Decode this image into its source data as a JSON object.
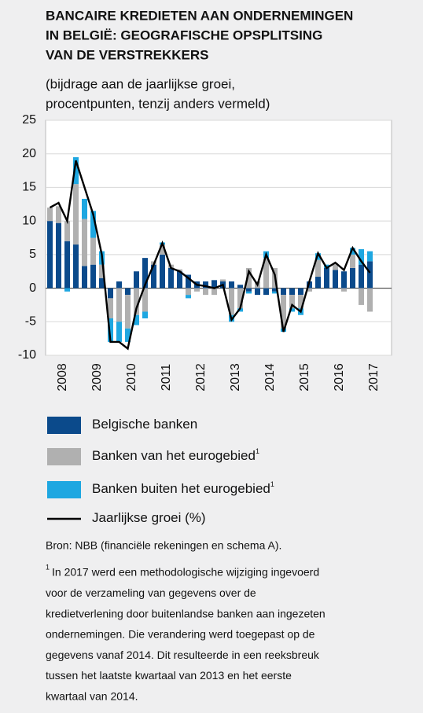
{
  "chart_data": {
    "type": "bar",
    "title": [
      "BANCAIRE KREDIETEN AAN ONDERNEMINGEN",
      "IN BELGIË: GEOGRAFISCHE OPSPLITSING",
      "VAN DE VERSTREKKERS"
    ],
    "subtitle": [
      "(bijdrage aan de jaarlijkse groei,",
      "procentpunten, tenzij anders vermeld)"
    ],
    "x": [
      2008.125,
      2008.375,
      2008.625,
      2008.875,
      2009.125,
      2009.375,
      2009.625,
      2009.875,
      2010.125,
      2010.375,
      2010.625,
      2010.875,
      2011.125,
      2011.375,
      2011.625,
      2011.875,
      2012.125,
      2012.375,
      2012.625,
      2012.875,
      2013.125,
      2013.375,
      2013.625,
      2013.875,
      2014.125,
      2014.375,
      2014.625,
      2014.875,
      2015.125,
      2015.375,
      2015.625,
      2015.875,
      2016.125,
      2016.375,
      2016.625,
      2016.875,
      2017.125,
      2017.375
    ],
    "xlim": [
      2008,
      2018
    ],
    "xticks": [
      {
        "value": 2008.5,
        "label": "2008"
      },
      {
        "value": 2009.5,
        "label": "2009"
      },
      {
        "value": 2010.5,
        "label": "2010"
      },
      {
        "value": 2011.5,
        "label": "2011"
      },
      {
        "value": 2012.5,
        "label": "2012"
      },
      {
        "value": 2013.5,
        "label": "2013"
      },
      {
        "value": 2014.5,
        "label": "2014"
      },
      {
        "value": 2015.5,
        "label": "2015"
      },
      {
        "value": 2016.5,
        "label": "2016"
      },
      {
        "value": 2017.5,
        "label": "2017"
      }
    ],
    "ylim": [
      -10,
      25
    ],
    "yticks": [
      -10,
      -5,
      0,
      5,
      10,
      15,
      20,
      25
    ],
    "grid": true,
    "series": [
      {
        "name": "Belgische banken",
        "type": "bar",
        "color": "#0b4a8b",
        "values": [
          10,
          9.7,
          7,
          6.5,
          3.3,
          3.5,
          1.5,
          -1.5,
          1,
          -1,
          2.5,
          4.5,
          3.5,
          5,
          3,
          2.5,
          2,
          1,
          1,
          1.2,
          1,
          1,
          0.5,
          -0.5,
          -1,
          -1,
          -0.5,
          -1,
          -1,
          -1,
          1,
          1.7,
          3,
          2.7,
          2.5,
          3,
          3.5,
          4
        ]
      },
      {
        "name": "Banken van het eurogebied",
        "note": "1",
        "type": "bar",
        "color": "#b0b0b0",
        "values": [
          2,
          2.5,
          3,
          9,
          7,
          4,
          2,
          -3,
          -5,
          -5,
          -4,
          -3.5,
          0.5,
          1.5,
          0.5,
          0.3,
          -1,
          -0.5,
          -1,
          -1,
          0.3,
          -4,
          -3,
          3,
          1,
          4.5,
          3,
          -5,
          -2,
          -2,
          -0.5,
          2.5,
          0,
          1,
          -0.5,
          2,
          -2.5,
          -3.5
        ]
      },
      {
        "name": "Banken buiten het eurogebied",
        "note": "1",
        "type": "bar",
        "color": "#1ea7e1",
        "values": [
          0,
          0,
          -0.5,
          4,
          3,
          4,
          2,
          -3.5,
          -3,
          -2,
          -1.5,
          -1,
          0,
          0.3,
          0,
          0,
          -0.5,
          0,
          0,
          0,
          0,
          -1,
          -0.5,
          -0.3,
          0,
          1,
          -0.3,
          -0.5,
          -0.5,
          -1,
          0,
          1,
          0.5,
          0,
          0,
          1,
          2.3,
          1.5
        ]
      },
      {
        "name": "Jaarlijkse groei (%)",
        "type": "line",
        "color": "#000000",
        "values": [
          12,
          12.7,
          10,
          19,
          15,
          11,
          5,
          -8,
          -8,
          -9,
          -3,
          0.5,
          3.5,
          6.7,
          3,
          2.5,
          1.5,
          0.5,
          0.3,
          0,
          0.5,
          -4.7,
          -3,
          2.5,
          0.5,
          5,
          2,
          -6.5,
          -2.5,
          -3.5,
          1,
          5.2,
          3,
          3.8,
          2.7,
          6,
          4,
          2.3
        ]
      }
    ],
    "source": "Bron: NBB (financiële rekeningen en schema A).",
    "footnote": {
      "marker": "1",
      "lines": [
        "In 2017 werd een methodologische wijziging ingevoerd",
        "voor de verzameling van gegevens over de",
        "kredietverlening door buitenlandse banken aan ingezeten",
        "ondernemingen. Die verandering werd toegepast op de",
        "gegevens vanaf 2014. Dit resulteerde in een reeksbreuk",
        "tussen het laatste kwartaal van 2013 en het eerste",
        "kwartaal van 2014."
      ]
    }
  }
}
